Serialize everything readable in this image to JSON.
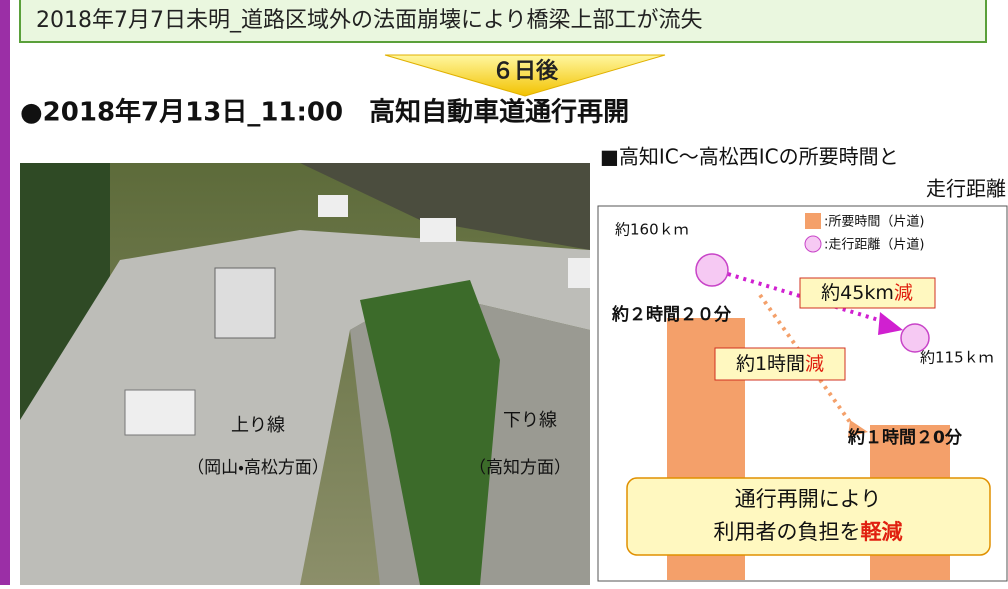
{
  "banner": "2018年7月7日未明_道路区域外の法面崩壊により橋梁上部工が流失",
  "arrow_label": "６日後",
  "heading": "●2018年7月13日_11:00　高知自動車道通行再開",
  "photo": {
    "up_line": "上り線",
    "up_direction": "（岡山・高松方面）",
    "down_line": "下り線",
    "down_direction": "（高知方面）"
  },
  "panel": {
    "title_lines": [
      "■高知IC～高松西ICの所要時間と",
      "走行距離"
    ],
    "legend": [
      ":所要時間（片道)",
      ":走行距離（片道)"
    ],
    "distance_before": "約160ｋｍ",
    "distance_after": "約115ｋｍ",
    "time_before": "約２時間２０分",
    "time_after": "約１時間２0分",
    "distance_reduction": {
      "text": "約45km",
      "accent": "減"
    },
    "time_reduction": {
      "text": "約1時間",
      "accent": "減"
    },
    "message": {
      "line1": "通行再開により",
      "line2": "利用者の負担を",
      "accent": "軽減"
    }
  }
}
